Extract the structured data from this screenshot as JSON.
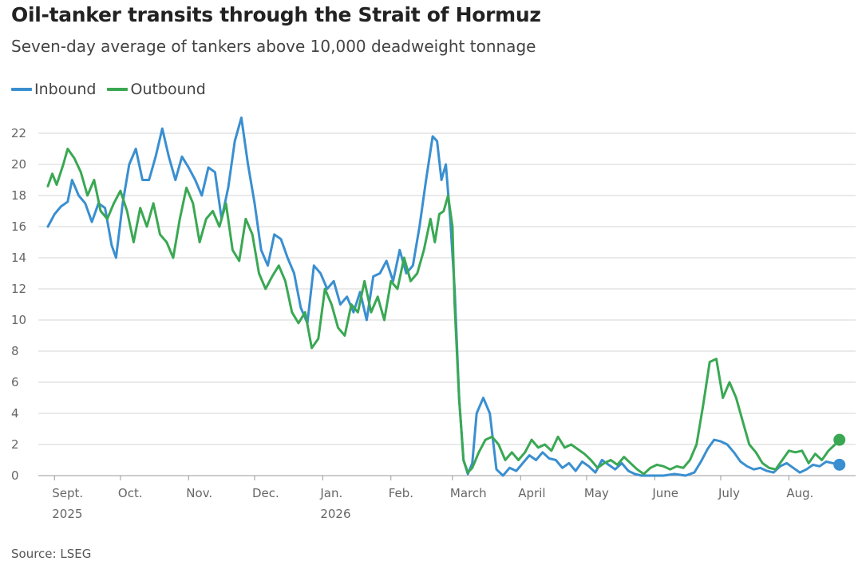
{
  "title": "Oil-tanker transits through the Strait of Hormuz",
  "subtitle": "Seven-day average of tankers above 10,000 deadweight tonnage",
  "source": "Source: LSEG",
  "chart_data": {
    "type": "line",
    "grid": true,
    "legend_position": "top-left",
    "ylim": [
      0,
      22
    ],
    "yticks": [
      0,
      2,
      4,
      6,
      8,
      10,
      12,
      14,
      16,
      18,
      20,
      22
    ],
    "xlim": [
      "2025-08-29",
      "2026-08-27"
    ],
    "xticks": [
      {
        "date": "2025-09-01",
        "label": "Sept.",
        "sublabel": "2025"
      },
      {
        "date": "2025-10-01",
        "label": "Oct.",
        "sublabel": ""
      },
      {
        "date": "2025-11-01",
        "label": "Nov.",
        "sublabel": ""
      },
      {
        "date": "2025-12-01",
        "label": "Dec.",
        "sublabel": ""
      },
      {
        "date": "2026-01-01",
        "label": "Jan.",
        "sublabel": "2026"
      },
      {
        "date": "2026-02-01",
        "label": "Feb.",
        "sublabel": ""
      },
      {
        "date": "2026-03-01",
        "label": "March",
        "sublabel": ""
      },
      {
        "date": "2026-04-01",
        "label": "April",
        "sublabel": ""
      },
      {
        "date": "2026-05-01",
        "label": "May",
        "sublabel": ""
      },
      {
        "date": "2026-06-01",
        "label": "June",
        "sublabel": ""
      },
      {
        "date": "2026-07-01",
        "label": "July",
        "sublabel": ""
      },
      {
        "date": "2026-08-01",
        "label": "Aug.",
        "sublabel": ""
      }
    ],
    "series": [
      {
        "name": "Inbound",
        "color": "#3a8fd0",
        "points": [
          [
            "2025-08-29",
            16.0
          ],
          [
            "2025-09-01",
            16.8
          ],
          [
            "2025-09-04",
            17.3
          ],
          [
            "2025-09-07",
            17.6
          ],
          [
            "2025-09-09",
            19.0
          ],
          [
            "2025-09-12",
            18.0
          ],
          [
            "2025-09-15",
            17.5
          ],
          [
            "2025-09-18",
            16.3
          ],
          [
            "2025-09-21",
            17.5
          ],
          [
            "2025-09-24",
            17.2
          ],
          [
            "2025-09-27",
            14.8
          ],
          [
            "2025-09-29",
            14.0
          ],
          [
            "2025-10-02",
            17.5
          ],
          [
            "2025-10-05",
            20.0
          ],
          [
            "2025-10-08",
            21.0
          ],
          [
            "2025-10-11",
            19.0
          ],
          [
            "2025-10-14",
            19.0
          ],
          [
            "2025-10-17",
            20.5
          ],
          [
            "2025-10-20",
            22.3
          ],
          [
            "2025-10-23",
            20.5
          ],
          [
            "2025-10-26",
            19.0
          ],
          [
            "2025-10-29",
            20.5
          ],
          [
            "2025-11-01",
            19.8
          ],
          [
            "2025-11-04",
            19.0
          ],
          [
            "2025-11-07",
            18.0
          ],
          [
            "2025-11-10",
            19.8
          ],
          [
            "2025-11-13",
            19.5
          ],
          [
            "2025-11-16",
            16.5
          ],
          [
            "2025-11-19",
            18.5
          ],
          [
            "2025-11-22",
            21.5
          ],
          [
            "2025-11-25",
            23.0
          ],
          [
            "2025-11-28",
            20.0
          ],
          [
            "2025-12-01",
            17.5
          ],
          [
            "2025-12-04",
            14.5
          ],
          [
            "2025-12-07",
            13.5
          ],
          [
            "2025-12-10",
            15.5
          ],
          [
            "2025-12-13",
            15.2
          ],
          [
            "2025-12-16",
            14.0
          ],
          [
            "2025-12-19",
            13.0
          ],
          [
            "2025-12-22",
            10.8
          ],
          [
            "2025-12-25",
            9.8
          ],
          [
            "2025-12-28",
            13.5
          ],
          [
            "2025-12-31",
            13.0
          ],
          [
            "2026-01-03",
            12.0
          ],
          [
            "2026-01-06",
            12.5
          ],
          [
            "2026-01-09",
            11.0
          ],
          [
            "2026-01-12",
            11.5
          ],
          [
            "2026-01-15",
            10.5
          ],
          [
            "2026-01-18",
            11.8
          ],
          [
            "2026-01-21",
            10.0
          ],
          [
            "2026-01-24",
            12.8
          ],
          [
            "2026-01-27",
            13.0
          ],
          [
            "2026-01-30",
            13.8
          ],
          [
            "2026-02-02",
            12.5
          ],
          [
            "2026-02-05",
            14.5
          ],
          [
            "2026-02-08",
            13.0
          ],
          [
            "2026-02-11",
            13.5
          ],
          [
            "2026-02-14",
            16.0
          ],
          [
            "2026-02-17",
            19.0
          ],
          [
            "2026-02-20",
            21.8
          ],
          [
            "2026-02-22",
            21.5
          ],
          [
            "2026-02-24",
            19.0
          ],
          [
            "2026-02-26",
            20.0
          ],
          [
            "2026-02-28",
            16.5
          ],
          [
            "2026-03-02",
            12.0
          ],
          [
            "2026-03-04",
            5.0
          ],
          [
            "2026-03-06",
            1.0
          ],
          [
            "2026-03-08",
            0.1
          ],
          [
            "2026-03-10",
            0.8
          ],
          [
            "2026-03-12",
            4.0
          ],
          [
            "2026-03-15",
            5.0
          ],
          [
            "2026-03-18",
            4.0
          ],
          [
            "2026-03-21",
            0.4
          ],
          [
            "2026-03-24",
            0.0
          ],
          [
            "2026-03-27",
            0.5
          ],
          [
            "2026-03-30",
            0.3
          ],
          [
            "2026-04-02",
            0.8
          ],
          [
            "2026-04-05",
            1.3
          ],
          [
            "2026-04-08",
            1.0
          ],
          [
            "2026-04-11",
            1.5
          ],
          [
            "2026-04-14",
            1.1
          ],
          [
            "2026-04-17",
            1.0
          ],
          [
            "2026-04-20",
            0.5
          ],
          [
            "2026-04-23",
            0.8
          ],
          [
            "2026-04-26",
            0.3
          ],
          [
            "2026-04-29",
            0.9
          ],
          [
            "2026-05-02",
            0.6
          ],
          [
            "2026-05-05",
            0.2
          ],
          [
            "2026-05-08",
            1.0
          ],
          [
            "2026-05-11",
            0.7
          ],
          [
            "2026-05-14",
            0.4
          ],
          [
            "2026-05-17",
            0.8
          ],
          [
            "2026-05-20",
            0.3
          ],
          [
            "2026-05-23",
            0.1
          ],
          [
            "2026-05-26",
            0.0
          ],
          [
            "2026-06-05",
            0.0
          ],
          [
            "2026-06-10",
            0.1
          ],
          [
            "2026-06-15",
            0.0
          ],
          [
            "2026-06-19",
            0.2
          ],
          [
            "2026-06-22",
            0.9
          ],
          [
            "2026-06-25",
            1.7
          ],
          [
            "2026-06-28",
            2.3
          ],
          [
            "2026-07-01",
            2.2
          ],
          [
            "2026-07-04",
            2.0
          ],
          [
            "2026-07-07",
            1.5
          ],
          [
            "2026-07-10",
            0.9
          ],
          [
            "2026-07-13",
            0.6
          ],
          [
            "2026-07-16",
            0.4
          ],
          [
            "2026-07-19",
            0.5
          ],
          [
            "2026-07-22",
            0.3
          ],
          [
            "2026-07-25",
            0.2
          ],
          [
            "2026-07-28",
            0.6
          ],
          [
            "2026-07-31",
            0.8
          ],
          [
            "2026-08-03",
            0.5
          ],
          [
            "2026-08-06",
            0.2
          ],
          [
            "2026-08-09",
            0.4
          ],
          [
            "2026-08-12",
            0.7
          ],
          [
            "2026-08-15",
            0.6
          ],
          [
            "2026-08-18",
            0.9
          ],
          [
            "2026-08-21",
            0.8
          ],
          [
            "2026-08-24",
            0.7
          ]
        ]
      },
      {
        "name": "Outbound",
        "color": "#3aa853",
        "points": [
          [
            "2025-08-29",
            18.6
          ],
          [
            "2025-08-31",
            19.4
          ],
          [
            "2025-09-02",
            18.7
          ],
          [
            "2025-09-05",
            20.0
          ],
          [
            "2025-09-07",
            21.0
          ],
          [
            "2025-09-10",
            20.4
          ],
          [
            "2025-09-13",
            19.5
          ],
          [
            "2025-09-16",
            18.0
          ],
          [
            "2025-09-19",
            19.0
          ],
          [
            "2025-09-22",
            17.0
          ],
          [
            "2025-09-25",
            16.5
          ],
          [
            "2025-09-28",
            17.5
          ],
          [
            "2025-10-01",
            18.3
          ],
          [
            "2025-10-04",
            17.0
          ],
          [
            "2025-10-07",
            15.0
          ],
          [
            "2025-10-10",
            17.2
          ],
          [
            "2025-10-13",
            16.0
          ],
          [
            "2025-10-16",
            17.5
          ],
          [
            "2025-10-19",
            15.5
          ],
          [
            "2025-10-22",
            15.0
          ],
          [
            "2025-10-25",
            14.0
          ],
          [
            "2025-10-28",
            16.5
          ],
          [
            "2025-10-31",
            18.5
          ],
          [
            "2025-11-03",
            17.5
          ],
          [
            "2025-11-06",
            15.0
          ],
          [
            "2025-11-09",
            16.5
          ],
          [
            "2025-11-12",
            17.0
          ],
          [
            "2025-11-15",
            16.0
          ],
          [
            "2025-11-18",
            17.5
          ],
          [
            "2025-11-21",
            14.5
          ],
          [
            "2025-11-24",
            13.8
          ],
          [
            "2025-11-27",
            16.5
          ],
          [
            "2025-11-30",
            15.5
          ],
          [
            "2025-12-03",
            13.0
          ],
          [
            "2025-12-06",
            12.0
          ],
          [
            "2025-12-09",
            12.8
          ],
          [
            "2025-12-12",
            13.5
          ],
          [
            "2025-12-15",
            12.5
          ],
          [
            "2025-12-18",
            10.5
          ],
          [
            "2025-12-21",
            9.8
          ],
          [
            "2025-12-24",
            10.5
          ],
          [
            "2025-12-27",
            8.2
          ],
          [
            "2025-12-30",
            8.8
          ],
          [
            "2026-01-02",
            12.0
          ],
          [
            "2026-01-05",
            11.0
          ],
          [
            "2026-01-08",
            9.5
          ],
          [
            "2026-01-11",
            9.0
          ],
          [
            "2026-01-14",
            11.0
          ],
          [
            "2026-01-17",
            10.5
          ],
          [
            "2026-01-20",
            12.5
          ],
          [
            "2026-01-23",
            10.5
          ],
          [
            "2026-01-26",
            11.5
          ],
          [
            "2026-01-29",
            10.0
          ],
          [
            "2026-02-01",
            12.5
          ],
          [
            "2026-02-04",
            12.0
          ],
          [
            "2026-02-07",
            14.0
          ],
          [
            "2026-02-10",
            12.5
          ],
          [
            "2026-02-13",
            13.0
          ],
          [
            "2026-02-16",
            14.5
          ],
          [
            "2026-02-19",
            16.5
          ],
          [
            "2026-02-21",
            15.0
          ],
          [
            "2026-02-23",
            16.8
          ],
          [
            "2026-02-25",
            17.0
          ],
          [
            "2026-02-27",
            18.0
          ],
          [
            "2026-02-29",
            16.0
          ],
          [
            "2026-03-02",
            11.0
          ],
          [
            "2026-03-04",
            5.0
          ],
          [
            "2026-03-06",
            1.0
          ],
          [
            "2026-03-08",
            0.2
          ],
          [
            "2026-03-10",
            0.5
          ],
          [
            "2026-03-13",
            1.5
          ],
          [
            "2026-03-16",
            2.3
          ],
          [
            "2026-03-19",
            2.5
          ],
          [
            "2026-03-22",
            2.0
          ],
          [
            "2026-03-25",
            1.0
          ],
          [
            "2026-03-28",
            1.5
          ],
          [
            "2026-03-31",
            1.0
          ],
          [
            "2026-04-03",
            1.5
          ],
          [
            "2026-04-06",
            2.3
          ],
          [
            "2026-04-09",
            1.8
          ],
          [
            "2026-04-12",
            2.0
          ],
          [
            "2026-04-15",
            1.6
          ],
          [
            "2026-04-18",
            2.5
          ],
          [
            "2026-04-21",
            1.8
          ],
          [
            "2026-04-24",
            2.0
          ],
          [
            "2026-04-27",
            1.7
          ],
          [
            "2026-04-30",
            1.4
          ],
          [
            "2026-05-03",
            1.0
          ],
          [
            "2026-05-06",
            0.5
          ],
          [
            "2026-05-09",
            0.8
          ],
          [
            "2026-05-12",
            1.0
          ],
          [
            "2026-05-15",
            0.7
          ],
          [
            "2026-05-18",
            1.2
          ],
          [
            "2026-05-21",
            0.8
          ],
          [
            "2026-05-24",
            0.4
          ],
          [
            "2026-05-27",
            0.1
          ],
          [
            "2026-05-30",
            0.5
          ],
          [
            "2026-06-02",
            0.7
          ],
          [
            "2026-06-05",
            0.6
          ],
          [
            "2026-06-08",
            0.4
          ],
          [
            "2026-06-11",
            0.6
          ],
          [
            "2026-06-14",
            0.5
          ],
          [
            "2026-06-17",
            1.0
          ],
          [
            "2026-06-20",
            2.0
          ],
          [
            "2026-06-23",
            4.5
          ],
          [
            "2026-06-26",
            7.3
          ],
          [
            "2026-06-29",
            7.5
          ],
          [
            "2026-07-02",
            5.0
          ],
          [
            "2026-07-05",
            6.0
          ],
          [
            "2026-07-08",
            5.0
          ],
          [
            "2026-07-11",
            3.5
          ],
          [
            "2026-07-14",
            2.0
          ],
          [
            "2026-07-17",
            1.5
          ],
          [
            "2026-07-20",
            0.8
          ],
          [
            "2026-07-23",
            0.5
          ],
          [
            "2026-07-26",
            0.4
          ],
          [
            "2026-07-29",
            1.0
          ],
          [
            "2026-08-01",
            1.6
          ],
          [
            "2026-08-04",
            1.5
          ],
          [
            "2026-08-07",
            1.6
          ],
          [
            "2026-08-10",
            0.8
          ],
          [
            "2026-08-13",
            1.4
          ],
          [
            "2026-08-16",
            1.0
          ],
          [
            "2026-08-19",
            1.6
          ],
          [
            "2026-08-22",
            2.0
          ],
          [
            "2026-08-24",
            2.3
          ]
        ]
      }
    ]
  }
}
